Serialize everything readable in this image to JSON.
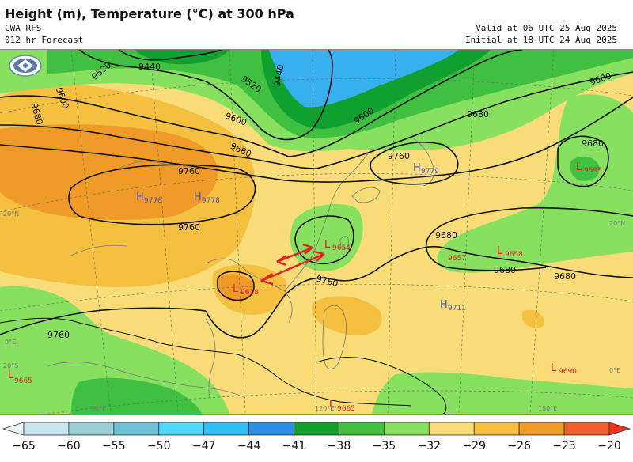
{
  "header": {
    "title": "Height (m), Temperature (°C) at 300 hPa",
    "model": "CWA RFS",
    "forecast": "012 hr Forecast",
    "valid": "Valid at 06 UTC 25 Aug 2025",
    "initial": "Initial at 18 UTC 24 Aug 2025"
  },
  "colors": {
    "bg_yellow": "#f8dc78",
    "light_orange": "#f5c040",
    "orange": "#f09a28",
    "green": "#88e060",
    "mid_green": "#40c040",
    "dark_green": "#10a030",
    "cyan": "#38b0f0",
    "annotation_red": "#e02020",
    "low_red": "#e02020",
    "high_blue": "#5050c0"
  },
  "contour_labels": [
    "9440",
    "9440",
    "9520",
    "9520",
    "9600",
    "9600",
    "9600",
    "9680",
    "9680",
    "9680",
    "9680",
    "9680",
    "9680",
    "9680",
    "9680",
    "9760",
    "9760",
    "9760"
  ],
  "pressure_centers": [
    {
      "type": "H",
      "value": "9778"
    },
    {
      "type": "H",
      "value": "9778"
    },
    {
      "type": "H",
      "value": "9779"
    },
    {
      "type": "L",
      "value": "9595"
    },
    {
      "type": "L",
      "value": "9654"
    },
    {
      "type": "L",
      "value": "9618"
    },
    {
      "type": "L",
      "value": "9657"
    },
    {
      "type": "L",
      "value": "9658"
    },
    {
      "type": "H",
      "value": "9711"
    },
    {
      "type": "L",
      "value": "9665"
    },
    {
      "type": "L",
      "value": "9665"
    },
    {
      "type": "L",
      "value": "9690"
    }
  ],
  "graticule_labels": [
    "20°N",
    "20°N",
    "20°S",
    "0°E",
    "0°E",
    "90°E",
    "120°E",
    "150°E"
  ],
  "colorbar": {
    "ticks": [
      "−65",
      "−60",
      "−55",
      "−50",
      "−47",
      "−44",
      "−41",
      "−38",
      "−35",
      "−32",
      "−29",
      "−26",
      "−23",
      "−20"
    ],
    "colors": [
      "#e8f4f8",
      "#c8e4ec",
      "#9cccd8",
      "#70c0d8",
      "#50d8f8",
      "#30c0f8",
      "#2890e8",
      "#10a030",
      "#40c040",
      "#88e060",
      "#f8dc78",
      "#f5c040",
      "#f09a28",
      "#f06030",
      "#f03020"
    ]
  }
}
